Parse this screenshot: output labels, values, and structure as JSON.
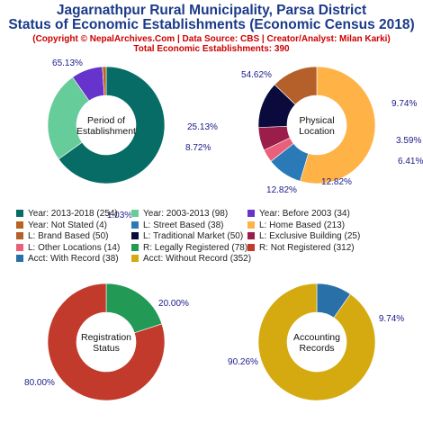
{
  "header": {
    "title_line1": "Jagarnathpur Rural Municipality, Parsa District",
    "title_line2": "Status of Economic Establishments (Economic Census 2018)",
    "copyright": "(Copyright © NepalArchives.Com | Data Source: CBS | Creator/Analyst: Milan Karki)",
    "total": "Total Economic Establishments: 390"
  },
  "chart_data": [
    {
      "type": "pie",
      "center_label": [
        "Period of",
        "Establishment"
      ],
      "slices": [
        {
          "label": "Year: 2013-2018 (254)",
          "value": 254,
          "pct": "65.13%",
          "color": "#076c66"
        },
        {
          "label": "Year: 2003-2013 (98)",
          "value": 98,
          "pct": "25.13%",
          "color": "#66cc99"
        },
        {
          "label": "Year: Before 2003 (34)",
          "value": 34,
          "pct": "8.72%",
          "color": "#6633cc"
        },
        {
          "label": "Year: Not Stated (4)",
          "value": 4,
          "pct": "1.03%",
          "color": "#b5651d"
        }
      ]
    },
    {
      "type": "pie",
      "center_label": [
        "Physical",
        "Location"
      ],
      "slices": [
        {
          "label": "L: Home Based (213)",
          "value": 213,
          "pct": "54.62%",
          "color": "#ffb347"
        },
        {
          "label": "L: Street Based (38)",
          "value": 38,
          "pct": "9.74%",
          "color": "#2a7ab8"
        },
        {
          "label": "L: Other Locations (14)",
          "value": 14,
          "pct": "3.59%",
          "color": "#e8607a"
        },
        {
          "label": "L: Exclusive Building (25)",
          "value": 25,
          "pct": "6.41%",
          "color": "#9b1d4a"
        },
        {
          "label": "L: Traditional Market (50)",
          "value": 50,
          "pct": "12.82%",
          "color": "#0a0a3c"
        },
        {
          "label": "L: Brand Based (50)",
          "value": 50,
          "pct": "12.82%",
          "color": "#b5602a"
        }
      ]
    },
    {
      "type": "pie",
      "center_label": [
        "Registration",
        "Status"
      ],
      "slices": [
        {
          "label": "R: Legally Registered (78)",
          "value": 78,
          "pct": "20.00%",
          "color": "#229955"
        },
        {
          "label": "R: Not Registered (312)",
          "value": 312,
          "pct": "80.00%",
          "color": "#c23a2b"
        }
      ]
    },
    {
      "type": "pie",
      "center_label": [
        "Accounting",
        "Records"
      ],
      "slices": [
        {
          "label": "Acct: With Record (38)",
          "value": 38,
          "pct": "9.74%",
          "color": "#2a70a8"
        },
        {
          "label": "Acct: Without Record (352)",
          "value": 352,
          "pct": "90.26%",
          "color": "#d4aa10"
        }
      ]
    }
  ],
  "legend": [
    {
      "label": "Year: 2013-2018 (254)",
      "color": "#076c66"
    },
    {
      "label": "Year: 2003-2013 (98)",
      "color": "#66cc99"
    },
    {
      "label": "Year: Before 2003 (34)",
      "color": "#6633cc"
    },
    {
      "label": "Year: Not Stated (4)",
      "color": "#b5651d"
    },
    {
      "label": "L: Street Based (38)",
      "color": "#2a7ab8"
    },
    {
      "label": "L: Home Based (213)",
      "color": "#ffb347"
    },
    {
      "label": "L: Brand Based (50)",
      "color": "#b5602a"
    },
    {
      "label": "L: Traditional Market (50)",
      "color": "#0a0a3c"
    },
    {
      "label": "L: Exclusive Building (25)",
      "color": "#9b1d4a"
    },
    {
      "label": "L: Other Locations (14)",
      "color": "#e8607a"
    },
    {
      "label": "R: Legally Registered (78)",
      "color": "#229955"
    },
    {
      "label": "R: Not Registered (312)",
      "color": "#c23a2b"
    },
    {
      "label": "Acct: With Record (38)",
      "color": "#2a70a8"
    },
    {
      "label": "Acct: Without Record (352)",
      "color": "#d4aa10"
    }
  ]
}
